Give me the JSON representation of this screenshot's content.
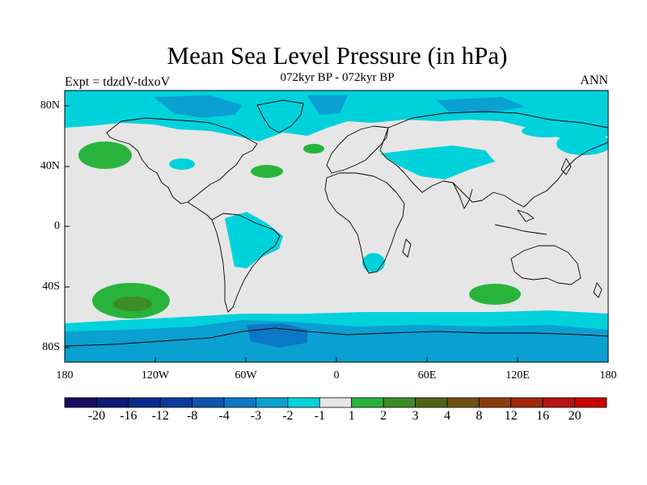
{
  "title": "Mean Sea Level Pressure (in hPa)",
  "subtitle": "072kyr BP - 072kyr BP",
  "left_label": "Expt = tdzdV-tdxoV",
  "right_label": "ANN",
  "lat_ticks": [
    "80N",
    "40N",
    "0",
    "40S",
    "80S"
  ],
  "lon_ticks": [
    "180",
    "120W",
    "60W",
    "0",
    "60E",
    "120E",
    "180"
  ],
  "colorbar": {
    "colors": [
      "#1a0a5e",
      "#0d1a78",
      "#0a2a8c",
      "#0a3c9e",
      "#0c55ac",
      "#0a78c4",
      "#0aa0d2",
      "#00d2dc",
      "#e6e6e6",
      "#28b43c",
      "#3c8c28",
      "#506414",
      "#6e5010",
      "#8c3c0a",
      "#a0280a",
      "#b41414",
      "#c80000"
    ],
    "labels": [
      "-20",
      "-16",
      "-12",
      "-8",
      "-4",
      "-3",
      "-2",
      "-1",
      "1",
      "2",
      "3",
      "4",
      "8",
      "12",
      "16",
      "20"
    ]
  },
  "colors": {
    "neutral": "#e6e6e6",
    "cyan": "#00d2dc",
    "blue": "#0aa0d2",
    "darkblue": "#0a78c4",
    "green": "#28b43c",
    "darkgreen": "#3c8c28",
    "coast": "#000000"
  }
}
